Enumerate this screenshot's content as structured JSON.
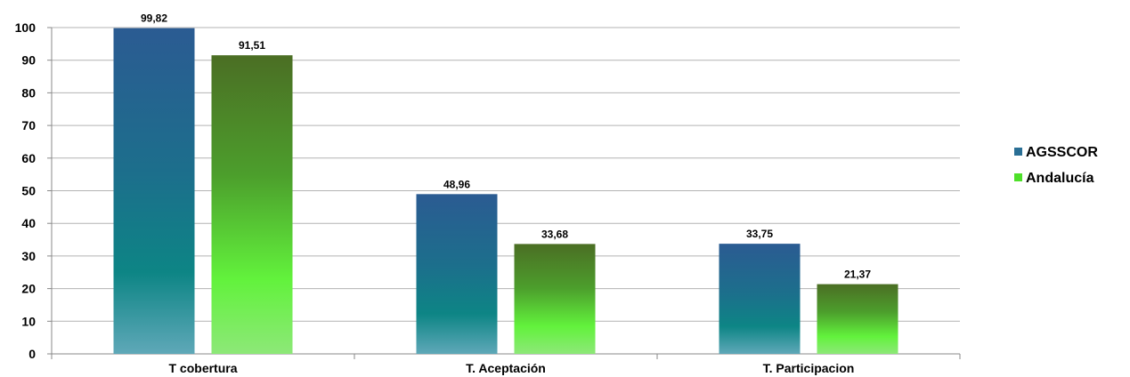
{
  "chart_data": {
    "type": "bar",
    "title": "",
    "xlabel": "",
    "ylabel": "",
    "categories": [
      "T cobertura",
      "T. Aceptación",
      "T. Participacion"
    ],
    "series": [
      {
        "name": "AGSSCOR",
        "values": [
          99.82,
          48.96,
          33.75
        ],
        "labels": [
          "99,82",
          "48,96",
          "33,75"
        ],
        "color": "#2a5f93"
      },
      {
        "name": "Andalucía",
        "values": [
          91.51,
          33.68,
          21.37
        ],
        "labels": [
          "91,51",
          "33,68",
          "21,37"
        ],
        "color": "#4a7a22"
      }
    ],
    "ylim": [
      0,
      100
    ],
    "yticks": [
      0,
      10,
      20,
      30,
      40,
      50,
      60,
      70,
      80,
      90,
      100
    ],
    "grid": true,
    "legend_position": "right"
  }
}
